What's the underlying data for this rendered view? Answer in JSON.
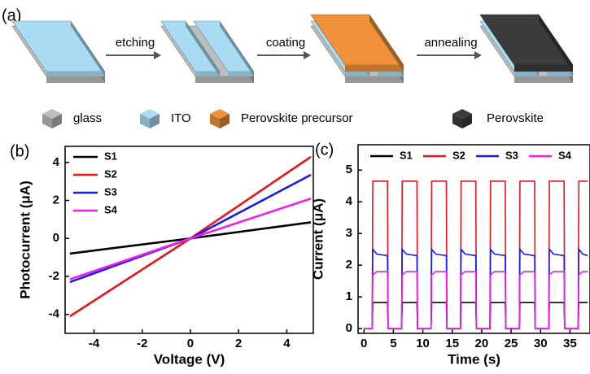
{
  "diagram": {
    "panel_label": "(a)",
    "steps": [
      "etching",
      "coating",
      "annealing"
    ],
    "materials": [
      {
        "name": "glass",
        "color": "#bdbdbd"
      },
      {
        "name": "ITO",
        "color": "#a9dcf2"
      },
      {
        "name": "Perovskite precursor",
        "color": "#f0913c"
      },
      {
        "name": "Perovskite",
        "color": "#3c3c3c"
      }
    ]
  },
  "chart_data": [
    {
      "type": "line",
      "panel_label": "(b)",
      "xlabel": "Voltage (V)",
      "ylabel": "Photocurrent (μA)",
      "x": [
        -5,
        0,
        5
      ],
      "series": [
        {
          "name": "S1",
          "color": "#000000",
          "values": [
            -0.8,
            0,
            0.85
          ]
        },
        {
          "name": "S2",
          "color": "#e8141b",
          "values": [
            -4.1,
            0,
            4.3
          ]
        },
        {
          "name": "S3",
          "color": "#1a1aeb",
          "values": [
            -2.3,
            0,
            3.35
          ]
        },
        {
          "name": "S4",
          "color": "#f01cf0",
          "values": [
            -2.15,
            0,
            2.1
          ]
        }
      ],
      "xlim": [
        -5.2,
        5.1
      ],
      "ylim": [
        -5,
        4.85
      ],
      "xticks": [
        -4,
        -2,
        0,
        2,
        4
      ],
      "yticks": [
        -4,
        -2,
        0,
        2,
        4
      ],
      "legend": "upper-left"
    },
    {
      "type": "line",
      "panel_label": "(c)",
      "xlabel": "Time (s)",
      "ylabel": "Current (μA)",
      "x": [
        0,
        1.4,
        1.5,
        2.2,
        4.0,
        4.1,
        6.4,
        6.5,
        7.2,
        9.0,
        9.1,
        11.4,
        11.5,
        12.2,
        14.0,
        14.1,
        16.4,
        16.5,
        17.2,
        19.0,
        19.1,
        21.4,
        21.5,
        22.2,
        24.0,
        24.1,
        26.4,
        26.5,
        27.2,
        29.0,
        29.1,
        31.4,
        31.5,
        32.2,
        34.0,
        34.1,
        36.4,
        36.5,
        37.2,
        38.0
      ],
      "series": [
        {
          "name": "S1",
          "color": "#000000",
          "values": [
            0,
            0,
            0.82,
            0.82,
            0.82,
            0,
            0,
            0.82,
            0.82,
            0.82,
            0,
            0,
            0.82,
            0.82,
            0.82,
            0,
            0,
            0.82,
            0.82,
            0.82,
            0,
            0,
            0.82,
            0.82,
            0.82,
            0,
            0,
            0.82,
            0.82,
            0.82,
            0,
            0,
            0.82,
            0.82,
            0.82,
            0,
            0,
            0.82,
            0.82,
            0.82
          ]
        },
        {
          "name": "S2",
          "color": "#e8141b",
          "values": [
            0,
            0,
            4.65,
            4.65,
            4.65,
            0,
            0,
            4.65,
            4.65,
            4.65,
            0,
            0,
            4.65,
            4.65,
            4.65,
            0,
            0,
            4.65,
            4.65,
            4.65,
            0,
            0,
            4.65,
            4.65,
            4.65,
            0,
            0,
            4.65,
            4.65,
            4.65,
            0,
            0,
            4.65,
            4.65,
            4.65,
            0,
            0,
            4.65,
            4.65,
            4.65
          ]
        },
        {
          "name": "S3",
          "color": "#1a1aeb",
          "values": [
            0,
            0,
            2.5,
            2.35,
            2.3,
            0,
            0,
            2.5,
            2.35,
            2.3,
            0,
            0,
            2.5,
            2.35,
            2.3,
            0,
            0,
            2.5,
            2.35,
            2.3,
            0,
            0,
            2.5,
            2.35,
            2.3,
            0,
            0,
            2.5,
            2.35,
            2.3,
            0,
            0,
            2.5,
            2.35,
            2.3,
            0,
            0,
            2.5,
            2.35,
            2.3
          ]
        },
        {
          "name": "S4",
          "color": "#f01cf0",
          "values": [
            0,
            0,
            1.7,
            1.8,
            1.8,
            0,
            0,
            1.7,
            1.8,
            1.8,
            0,
            0,
            1.7,
            1.8,
            1.8,
            0,
            0,
            1.7,
            1.8,
            1.8,
            0,
            0,
            1.7,
            1.8,
            1.8,
            0,
            0,
            1.7,
            1.8,
            1.8,
            0,
            0,
            1.7,
            1.8,
            1.8,
            0,
            0,
            1.7,
            1.8,
            1.8
          ]
        }
      ],
      "xlim": [
        -1,
        38.4
      ],
      "ylim": [
        -0.15,
        5.8
      ],
      "xticks": [
        0,
        5,
        10,
        15,
        20,
        25,
        30,
        35
      ],
      "yticks": [
        0,
        1,
        2,
        3,
        4,
        5
      ],
      "legend": "top"
    }
  ]
}
